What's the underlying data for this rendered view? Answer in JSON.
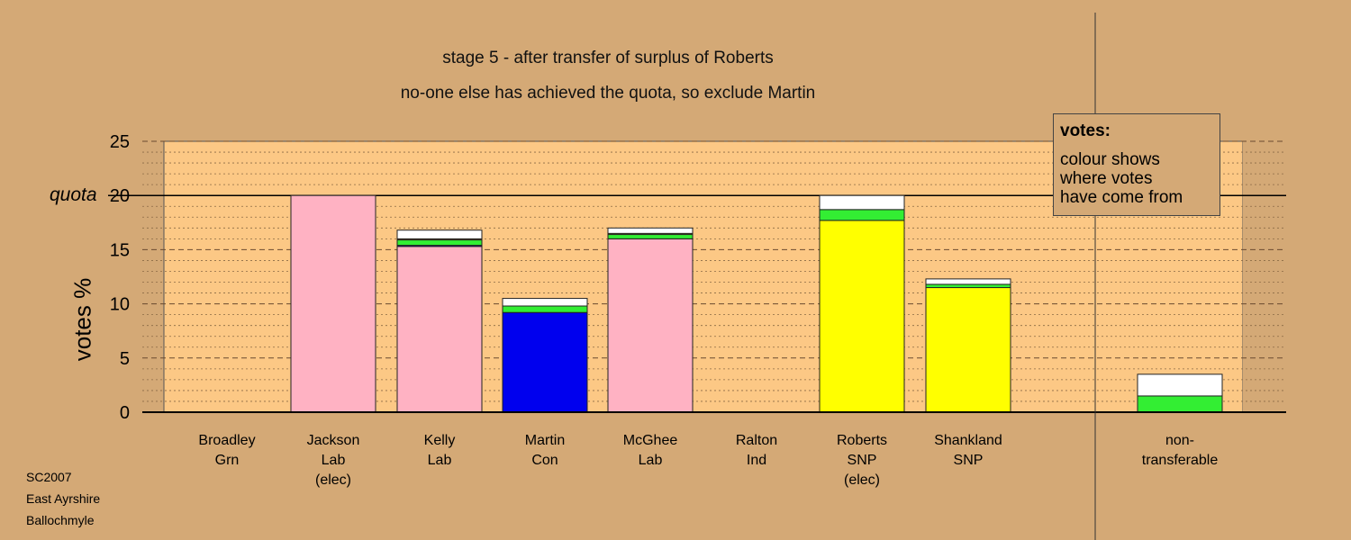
{
  "titles": {
    "line1": "stage 5 - after transfer of surplus of Roberts",
    "line2": "no-one else has achieved the quota, so exclude Martin"
  },
  "legend": {
    "heading": "votes:",
    "lines": [
      "colour shows",
      "where votes",
      "have come from"
    ]
  },
  "source": [
    "SC2007",
    "East Ayrshire",
    "Ballochmyle"
  ],
  "colors": {
    "background": "#d4a976",
    "plot_area": "#fcc885",
    "Lab": "#ffb2c3",
    "Con": "#0000ee",
    "SNP": "#ffff00",
    "Grn": "#33ee22",
    "transfer_green": "#33ee33",
    "transfer_white": "#ffffff"
  },
  "chart_data": {
    "type": "bar",
    "stacked": true,
    "ylabel": "votes %",
    "ylim": [
      0,
      25
    ],
    "yticks": [
      0,
      5,
      10,
      15,
      20,
      25
    ],
    "quota": 20,
    "quota_label": "quota",
    "grid": true,
    "legend_position": "top-right",
    "categories": [
      {
        "lines": [
          "Broadley",
          "Grn"
        ],
        "segments": []
      },
      {
        "lines": [
          "Jackson",
          "Lab",
          "(elec)"
        ],
        "segments": [
          {
            "source": "Lab",
            "value": 20.0
          }
        ]
      },
      {
        "lines": [
          "Kelly",
          "Lab"
        ],
        "segments": [
          {
            "source": "Lab",
            "value": 15.3
          },
          {
            "source": "Con",
            "value": 0.1
          },
          {
            "source": "Grn",
            "value": 0.5
          },
          {
            "source": "SNP",
            "value": 0.1
          },
          {
            "source": "other",
            "value": 0.8
          }
        ]
      },
      {
        "lines": [
          "Martin",
          "Con"
        ],
        "segments": [
          {
            "source": "Con",
            "value": 9.2
          },
          {
            "source": "Grn",
            "value": 0.6
          },
          {
            "source": "other",
            "value": 0.7
          }
        ]
      },
      {
        "lines": [
          "McGhee",
          "Lab"
        ],
        "segments": [
          {
            "source": "Lab",
            "value": 16.0
          },
          {
            "source": "Grn",
            "value": 0.4
          },
          {
            "source": "SNP",
            "value": 0.1
          },
          {
            "source": "other",
            "value": 0.5
          }
        ]
      },
      {
        "lines": [
          "Ralton",
          "Ind"
        ],
        "segments": []
      },
      {
        "lines": [
          "Roberts",
          "SNP",
          "(elec)"
        ],
        "segments": [
          {
            "source": "SNP",
            "value": 17.7
          },
          {
            "source": "Grn",
            "value": 1.0
          },
          {
            "source": "other",
            "value": 1.3
          }
        ]
      },
      {
        "lines": [
          "Shankland",
          "SNP"
        ],
        "segments": [
          {
            "source": "SNP",
            "value": 11.5
          },
          {
            "source": "Grn",
            "value": 0.3
          },
          {
            "source": "other",
            "value": 0.5
          }
        ]
      },
      {
        "lines": [
          "non-",
          "transferable"
        ],
        "segments": [
          {
            "source": "Grn",
            "value": 1.5
          },
          {
            "source": "other",
            "value": 2.0
          }
        ]
      }
    ]
  }
}
